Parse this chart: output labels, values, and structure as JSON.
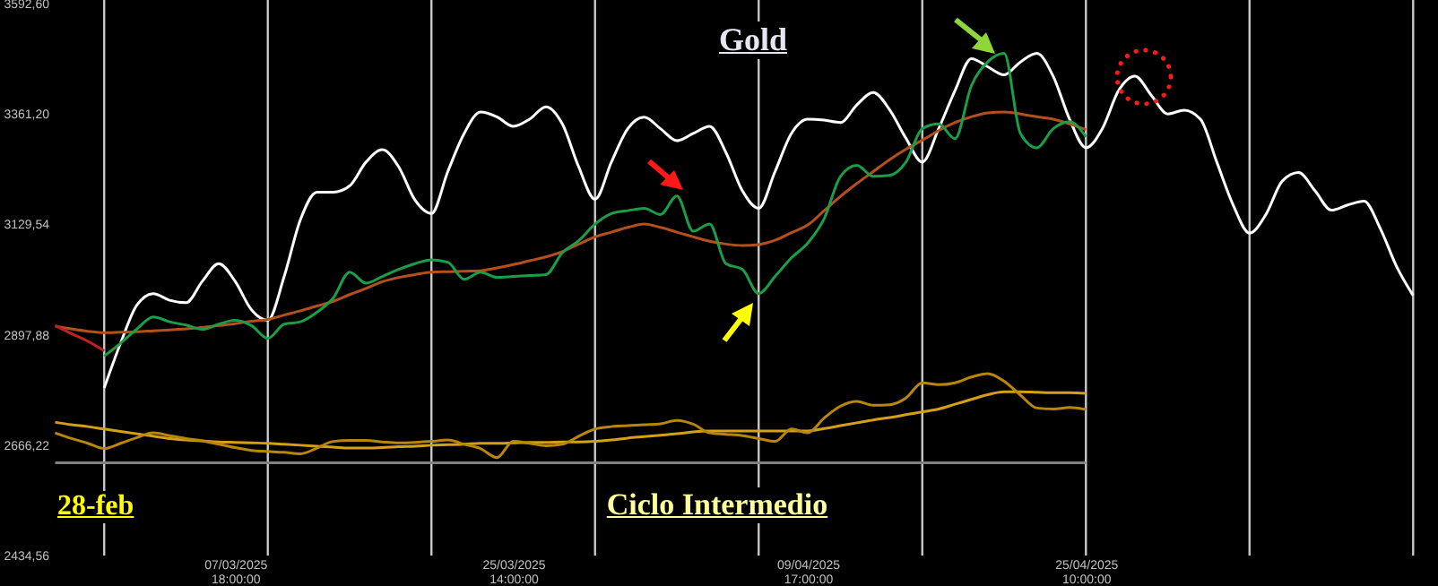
{
  "chart_data": {
    "type": "line",
    "title": "Gold",
    "annotations": [
      "28-feb",
      "Ciclo Intermedio"
    ],
    "categories": [
      null,
      null,
      null,
      null,
      null,
      null,
      null,
      null,
      null,
      null,
      null,
      "07/03/2025\n18:00:00",
      null,
      null,
      null,
      null,
      null,
      null,
      null,
      null,
      null,
      null,
      null,
      null,
      null,
      null,
      null,
      null,
      "25/03/2025\n14:00:00",
      null,
      null,
      null,
      null,
      null,
      null,
      null,
      null,
      null,
      null,
      null,
      null,
      null,
      null,
      null,
      null,
      null,
      "09/04/2025\n17:00:00",
      null,
      null,
      null,
      null,
      null,
      null,
      null,
      null,
      null,
      null,
      null,
      null,
      null,
      null,
      null,
      null,
      "25/04/2025\n10:00:00",
      null,
      null,
      null,
      null,
      null,
      null,
      null,
      null,
      null,
      null,
      null,
      null,
      null,
      null,
      null,
      null,
      null,
      null,
      null,
      null,
      null
    ],
    "ylim": [
      2434.56,
      3600
    ],
    "yticks": [
      {
        "value": 2434.56,
        "label": "2434,56"
      },
      {
        "value": 2666.22,
        "label": "2666,22"
      },
      {
        "value": 2897.88,
        "label": "2897,88"
      },
      {
        "value": 3129.54,
        "label": "3129,54"
      },
      {
        "value": 3361.2,
        "label": "3361,20"
      },
      {
        "value": 3592.6,
        "label": "3592,60"
      }
    ],
    "grid": "x",
    "series": [
      {
        "color": "#808080",
        "values": [
          2629,
          2629,
          2629,
          2629,
          2629,
          2629,
          2629,
          2629,
          2629,
          2629,
          2629,
          2629,
          2629,
          2629,
          2629,
          2629,
          2629,
          2629,
          2629,
          2629,
          2629,
          2629,
          2629,
          2629,
          2629,
          2629,
          2629,
          2629,
          2629,
          2629,
          2629,
          2629,
          2629,
          2629,
          2629,
          2629,
          2629,
          2629,
          2629,
          2629,
          2629,
          2629,
          2629,
          2629,
          2629,
          2629,
          2629,
          2629,
          2629,
          2629,
          2629,
          2629,
          2629,
          2629,
          2629,
          2629,
          2629,
          2629,
          2629,
          2629,
          2629,
          2629,
          2629,
          2629,
          null,
          null,
          null,
          null,
          null,
          null,
          null,
          null,
          null,
          null,
          null,
          null,
          null,
          null,
          null,
          null,
          null,
          null,
          null,
          null,
          null
        ]
      },
      {
        "color": "#d4a017",
        "values": [
          2714,
          2709,
          2705,
          2700,
          2695,
          2690,
          2685,
          2680,
          2677,
          2675,
          2673,
          2672,
          2671,
          2670,
          2668,
          2666,
          2664,
          2662,
          2660,
          2660,
          2661,
          2663,
          2664,
          2666,
          2667,
          2668,
          2670,
          2670,
          2671,
          2672,
          2672,
          2673,
          2673,
          2674,
          2677,
          2681,
          2684,
          2687,
          2690,
          2694,
          2696,
          2696,
          2696,
          2696,
          2696,
          2696,
          2696,
          2701,
          2707,
          2713,
          2719,
          2724,
          2730,
          2736,
          2742,
          2752,
          2762,
          2772,
          2778,
          2778,
          2777,
          2776,
          2776,
          2775,
          null,
          null,
          null,
          null,
          null,
          null,
          null,
          null,
          null,
          null,
          null,
          null,
          null,
          null,
          null,
          null,
          null,
          null,
          null,
          null,
          null
        ]
      },
      {
        "color": "#b8860b",
        "values": [
          2692,
          2680,
          2670,
          2659,
          2670,
          2682,
          2692,
          2686,
          2680,
          2675,
          2668,
          2661,
          2655,
          2653,
          2651,
          2648,
          2660,
          2674,
          2676,
          2676,
          2673,
          2671,
          2672,
          2674,
          2677,
          2668,
          2659,
          2640,
          2674,
          2670,
          2665,
          2668,
          2685,
          2700,
          2705,
          2707,
          2709,
          2711,
          2718,
          2710,
          2692,
          2689,
          2686,
          2680,
          2674,
          2700,
          2692,
          2723,
          2748,
          2758,
          2750,
          2751,
          2765,
          2797,
          2793,
          2797,
          2809,
          2816,
          2800,
          2771,
          2744,
          2742,
          2745,
          2741,
          null,
          null,
          null,
          null,
          null,
          null,
          null,
          null,
          null,
          null,
          null,
          null,
          null,
          null,
          null,
          null,
          null,
          null,
          null,
          null,
          null
        ]
      },
      {
        "color": "#ffffff",
        "values": [
          null,
          null,
          null,
          2786,
          2880,
          2960,
          2984,
          2970,
          2965,
          3010,
          3047,
          3010,
          2950,
          2928,
          3020,
          3140,
          3197,
          3197,
          3210,
          3260,
          3286,
          3250,
          3180,
          3152,
          3240,
          3320,
          3365,
          3355,
          3335,
          3350,
          3376,
          3340,
          3250,
          3182,
          3260,
          3330,
          3354,
          3330,
          3305,
          3320,
          3335,
          3280,
          3200,
          3163,
          3240,
          3320,
          3350,
          3348,
          3343,
          3380,
          3406,
          3370,
          3310,
          3260,
          3330,
          3410,
          3477,
          3460,
          3443,
          3470,
          3488,
          3440,
          3350,
          3290,
          3330,
          3410,
          3440,
          3400,
          3361,
          3369,
          3350,
          3260,
          3170,
          3111,
          3150,
          3220,
          3238,
          3200,
          3159,
          3170,
          3178,
          3120,
          3040,
          2980,
          null
        ]
      },
      {
        "color": "#b5501d",
        "values": [
          2916,
          2910,
          2905,
          2902,
          2903,
          2904,
          2906,
          2908,
          2910,
          2913,
          2917,
          2921,
          2926,
          2930,
          2939,
          2948,
          2958,
          2968,
          2982,
          2995,
          3009,
          3018,
          3024,
          3029,
          3030,
          3031,
          3032,
          3038,
          3045,
          3053,
          3061,
          3072,
          3088,
          3103,
          3113,
          3123,
          3130,
          3123,
          3113,
          3103,
          3094,
          3088,
          3085,
          3087,
          3096,
          3112,
          3128,
          3158,
          3188,
          3215,
          3240,
          3265,
          3287,
          3306,
          3326,
          3343,
          3355,
          3363,
          3365,
          3361,
          3355,
          3350,
          3340,
          3328,
          null,
          null,
          null,
          null,
          null,
          null,
          null,
          null,
          null,
          null,
          null,
          null,
          null,
          null,
          null,
          null,
          null,
          null,
          null,
          null,
          null
        ]
      },
      {
        "color": "#c02020",
        "values": [
          2917,
          2900,
          2884,
          2864,
          null,
          null,
          null,
          null,
          null,
          null,
          null,
          null,
          null,
          null,
          null,
          null,
          null,
          null,
          null,
          null,
          null,
          null,
          null,
          null,
          null,
          null,
          null,
          null,
          null,
          null,
          null,
          null,
          null,
          null,
          null,
          null,
          null,
          null,
          null,
          null,
          null,
          null,
          null,
          null,
          null,
          null,
          null,
          null,
          null,
          null,
          null,
          null,
          null,
          null,
          null,
          null,
          null,
          null,
          null,
          null,
          null,
          null,
          null,
          null,
          null,
          null,
          null,
          null,
          null,
          null,
          null,
          null,
          null,
          null,
          null,
          null,
          null,
          null,
          null,
          null,
          null,
          null,
          null,
          null,
          null
        ]
      },
      {
        "color": "#1a9e48",
        "values": [
          null,
          null,
          null,
          2853,
          2880,
          2910,
          2935,
          2925,
          2918,
          2909,
          2920,
          2928,
          2917,
          2890,
          2920,
          2925,
          2945,
          2975,
          3029,
          3006,
          3020,
          3035,
          3047,
          3055,
          3050,
          3014,
          3029,
          3018,
          3020,
          3022,
          3024,
          3070,
          3095,
          3130,
          3152,
          3158,
          3163,
          3150,
          3189,
          3115,
          3130,
          3047,
          3035,
          2984,
          3020,
          3059,
          3090,
          3141,
          3230,
          3253,
          3230,
          3232,
          3260,
          3330,
          3340,
          3309,
          3420,
          3470,
          3488,
          3320,
          3290,
          3330,
          3345,
          3313,
          null,
          null,
          null,
          null,
          null,
          null,
          null,
          null,
          null,
          null,
          null,
          null,
          null,
          null,
          null,
          null,
          null,
          null,
          null,
          null,
          null
        ]
      }
    ]
  }
}
